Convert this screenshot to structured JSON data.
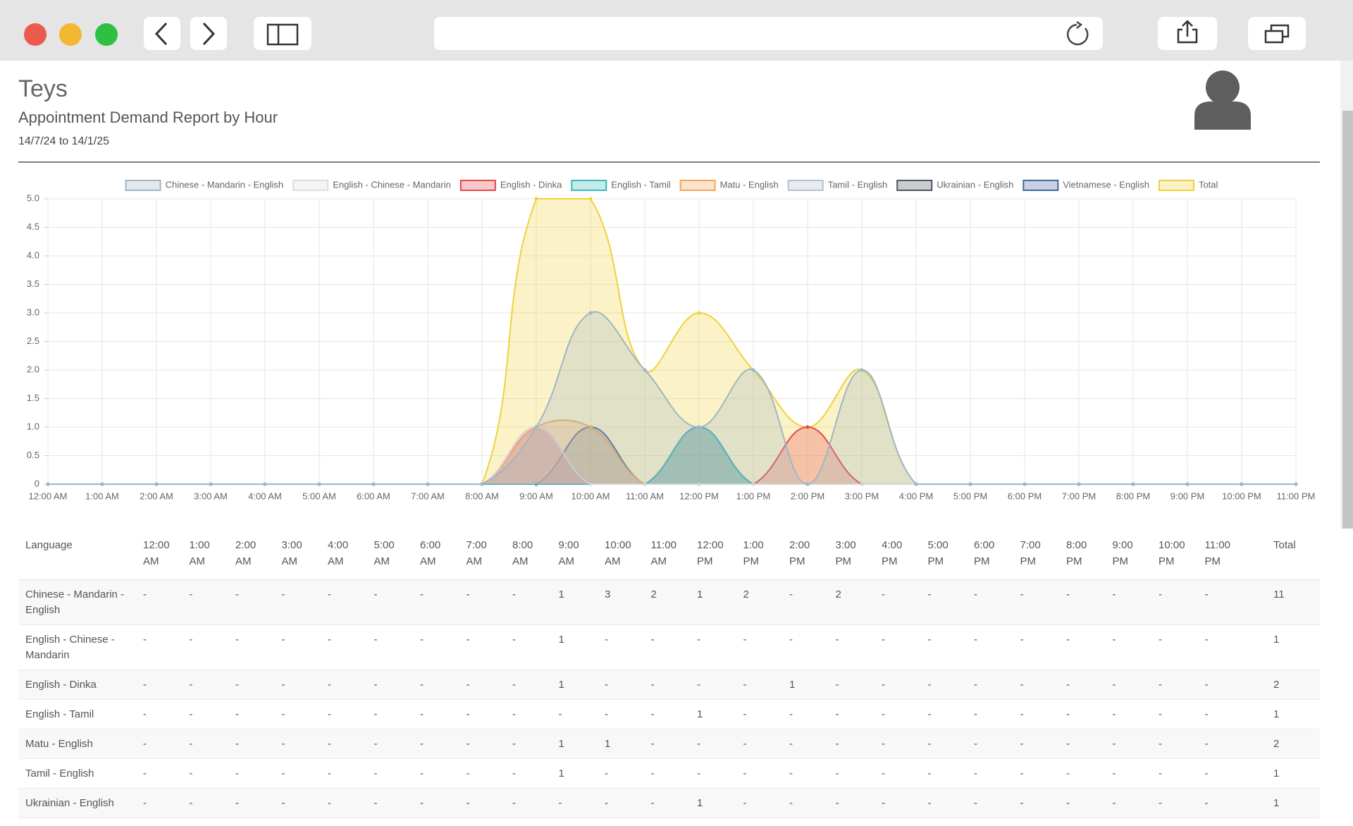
{
  "app_title": "Teys",
  "report_title": "Appointment Demand Report by Hour",
  "date_range": "14/7/24 to 14/1/25",
  "chart_data": {
    "type": "line",
    "fill": true,
    "categories": [
      "12:00 AM",
      "1:00 AM",
      "2:00 AM",
      "3:00 AM",
      "4:00 AM",
      "5:00 AM",
      "6:00 AM",
      "7:00 AM",
      "8:00 AM",
      "9:00 AM",
      "10:00 AM",
      "11:00 AM",
      "12:00 PM",
      "1:00 PM",
      "2:00 PM",
      "3:00 PM",
      "4:00 PM",
      "5:00 PM",
      "6:00 PM",
      "7:00 PM",
      "8:00 PM",
      "9:00 PM",
      "10:00 PM",
      "11:00 PM"
    ],
    "series": [
      {
        "name": "Chinese - Mandarin - English",
        "color": "#9fb6c6",
        "values": [
          0,
          0,
          0,
          0,
          0,
          0,
          0,
          0,
          0,
          1,
          3,
          2,
          1,
          2,
          0,
          2,
          0,
          0,
          0,
          0,
          0,
          0,
          0,
          0
        ]
      },
      {
        "name": "English - Chinese - Mandarin",
        "color": "#dcdcdc",
        "values": [
          0,
          0,
          0,
          0,
          0,
          0,
          0,
          0,
          0,
          1,
          0,
          0,
          0,
          0,
          0,
          0,
          0,
          0,
          0,
          0,
          0,
          0,
          0,
          0
        ]
      },
      {
        "name": "English - Dinka",
        "color": "#e5484d",
        "values": [
          0,
          0,
          0,
          0,
          0,
          0,
          0,
          0,
          0,
          1,
          0,
          0,
          0,
          0,
          1,
          0,
          0,
          0,
          0,
          0,
          0,
          0,
          0,
          0
        ]
      },
      {
        "name": "English - Tamil",
        "color": "#3db8b6",
        "values": [
          0,
          0,
          0,
          0,
          0,
          0,
          0,
          0,
          0,
          0,
          0,
          0,
          1,
          0,
          0,
          0,
          0,
          0,
          0,
          0,
          0,
          0,
          0,
          0
        ]
      },
      {
        "name": "Matu - English",
        "color": "#f2a65a",
        "values": [
          0,
          0,
          0,
          0,
          0,
          0,
          0,
          0,
          0,
          1,
          1,
          0,
          0,
          0,
          0,
          0,
          0,
          0,
          0,
          0,
          0,
          0,
          0,
          0
        ]
      },
      {
        "name": "Tamil - English",
        "color": "#b4c0ce",
        "values": [
          0,
          0,
          0,
          0,
          0,
          0,
          0,
          0,
          0,
          1,
          0,
          0,
          0,
          0,
          0,
          0,
          0,
          0,
          0,
          0,
          0,
          0,
          0,
          0
        ]
      },
      {
        "name": "Ukrainian - English",
        "color": "#4f5562",
        "values": [
          0,
          0,
          0,
          0,
          0,
          0,
          0,
          0,
          0,
          0,
          0,
          0,
          1,
          0,
          0,
          0,
          0,
          0,
          0,
          0,
          0,
          0,
          0,
          0
        ]
      },
      {
        "name": "Vietnamese - English",
        "color": "#46679f",
        "values": [
          0,
          0,
          0,
          0,
          0,
          0,
          0,
          0,
          0,
          0,
          1,
          0,
          0,
          0,
          0,
          0,
          0,
          0,
          0,
          0,
          0,
          0,
          0,
          0
        ]
      },
      {
        "name": "Total",
        "color": "#efd23a",
        "values": [
          0,
          0,
          0,
          0,
          0,
          0,
          0,
          0,
          0,
          5,
          5,
          2,
          3,
          2,
          1,
          2,
          0,
          0,
          0,
          0,
          0,
          0,
          0,
          0
        ]
      }
    ],
    "ylim": [
      0,
      5
    ],
    "yticks": [
      0,
      0.5,
      {
        "value": 1,
        "label": "1.0"
      },
      1.5,
      {
        "value": 2,
        "label": "2.0"
      },
      2.5,
      {
        "value": 3,
        "label": "3.0"
      },
      3.5,
      {
        "value": 4,
        "label": "4.0"
      },
      4.5,
      {
        "value": 5,
        "label": "5.0"
      }
    ],
    "grid": true,
    "legend": "top"
  },
  "table": {
    "header": [
      "Language",
      "12:00 AM",
      "1:00 AM",
      "2:00 AM",
      "3:00 AM",
      "4:00 AM",
      "5:00 AM",
      "6:00 AM",
      "7:00 AM",
      "8:00 AM",
      "9:00 AM",
      "10:00 AM",
      "11:00 AM",
      "12:00 PM",
      "1:00 PM",
      "2:00 PM",
      "3:00 PM",
      "4:00 PM",
      "5:00 PM",
      "6:00 PM",
      "7:00 PM",
      "8:00 PM",
      "9:00 PM",
      "10:00 PM",
      "11:00 PM",
      "Total"
    ],
    "rows": [
      [
        "Chinese - Mandarin - English",
        "-",
        "-",
        "-",
        "-",
        "-",
        "-",
        "-",
        "-",
        "-",
        "1",
        "3",
        "2",
        "1",
        "2",
        "-",
        "2",
        "-",
        "-",
        "-",
        "-",
        "-",
        "-",
        "-",
        "-",
        "11"
      ],
      [
        "English - Chinese - Mandarin",
        "-",
        "-",
        "-",
        "-",
        "-",
        "-",
        "-",
        "-",
        "-",
        "1",
        "-",
        "-",
        "-",
        "-",
        "-",
        "-",
        "-",
        "-",
        "-",
        "-",
        "-",
        "-",
        "-",
        "-",
        "1"
      ],
      [
        "English - Dinka",
        "-",
        "-",
        "-",
        "-",
        "-",
        "-",
        "-",
        "-",
        "-",
        "1",
        "-",
        "-",
        "-",
        "-",
        "1",
        "-",
        "-",
        "-",
        "-",
        "-",
        "-",
        "-",
        "-",
        "-",
        "2"
      ],
      [
        "English - Tamil",
        "-",
        "-",
        "-",
        "-",
        "-",
        "-",
        "-",
        "-",
        "-",
        "-",
        "-",
        "-",
        "1",
        "-",
        "-",
        "-",
        "-",
        "-",
        "-",
        "-",
        "-",
        "-",
        "-",
        "-",
        "1"
      ],
      [
        "Matu - English",
        "-",
        "-",
        "-",
        "-",
        "-",
        "-",
        "-",
        "-",
        "-",
        "1",
        "1",
        "-",
        "-",
        "-",
        "-",
        "-",
        "-",
        "-",
        "-",
        "-",
        "-",
        "-",
        "-",
        "-",
        "2"
      ],
      [
        "Tamil - English",
        "-",
        "-",
        "-",
        "-",
        "-",
        "-",
        "-",
        "-",
        "-",
        "1",
        "-",
        "-",
        "-",
        "-",
        "-",
        "-",
        "-",
        "-",
        "-",
        "-",
        "-",
        "-",
        "-",
        "-",
        "1"
      ],
      [
        "Ukrainian - English",
        "-",
        "-",
        "-",
        "-",
        "-",
        "-",
        "-",
        "-",
        "-",
        "-",
        "-",
        "-",
        "1",
        "-",
        "-",
        "-",
        "-",
        "-",
        "-",
        "-",
        "-",
        "-",
        "-",
        "-",
        "1"
      ]
    ]
  }
}
